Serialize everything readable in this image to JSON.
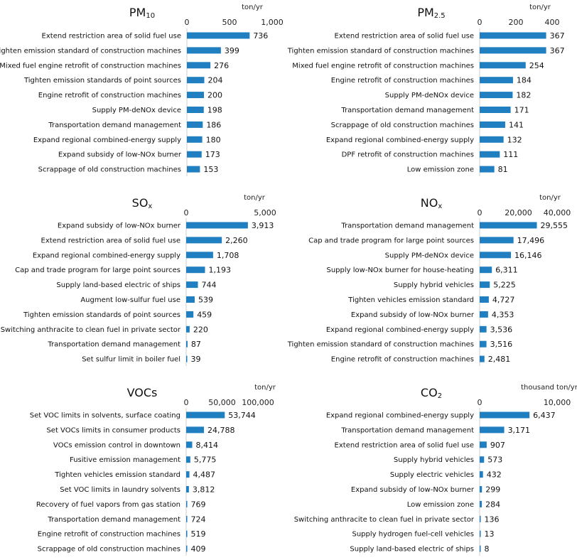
{
  "bar_color": "#1f7fc0",
  "chart_data": [
    {
      "type": "bar",
      "title_main": "PM",
      "title_sub": "10",
      "unit": "ton/yr",
      "xlim": [
        0,
        1000
      ],
      "ticks": [
        0,
        500,
        1000
      ],
      "tick_labels": [
        "0",
        "500",
        "1,000"
      ],
      "categories": [
        "Extend restriction area of solid fuel use",
        "Tighten emission standard of construction machines",
        "Mixed fuel engine retrofit of construction machines",
        "Tighten emission standards of point sources",
        "Engine retrofit of construction machines",
        "Supply PM-deNOx device",
        "Transportation demand management",
        "Expand regional combined-energy supply",
        "Expand subsidy of low-NOx burner",
        "Scrappage of old construction machines"
      ],
      "values": [
        736,
        399,
        276,
        204,
        200,
        198,
        186,
        180,
        173,
        153
      ],
      "value_labels": [
        "736",
        "399",
        "276",
        "204",
        "200",
        "198",
        "186",
        "180",
        "173",
        "153"
      ]
    },
    {
      "type": "bar",
      "title_main": "PM",
      "title_sub": "2.5",
      "unit": "ton/yr",
      "xlim": [
        0,
        400
      ],
      "ticks": [
        0,
        200,
        400
      ],
      "tick_labels": [
        "0",
        "200",
        "400"
      ],
      "categories": [
        "Extend restriction area of solid fuel use",
        "Tighten emission standard of construction machines",
        "Mixed fuel engine retrofit of construction machines",
        "Engine retrofit of construction machines",
        "Supply PM-deNOx device",
        "Transportation demand management",
        "Scrappage of old construction machines",
        "Expand regional combined-energy supply",
        "DPF retrofit of construction machines",
        "Low emission zone"
      ],
      "values": [
        367,
        367,
        254,
        184,
        182,
        171,
        141,
        132,
        111,
        81
      ],
      "value_labels": [
        "367",
        "367",
        "254",
        "184",
        "182",
        "171",
        "141",
        "132",
        "111",
        "81"
      ]
    },
    {
      "type": "bar",
      "title_main": "SO",
      "title_sub": "x",
      "unit": "ton/yr",
      "xlim": [
        0,
        5000
      ],
      "ticks": [
        0,
        5000
      ],
      "tick_labels": [
        "0",
        "5,000"
      ],
      "categories": [
        "Expand subsidy of low-NOx burner",
        "Extend restriction area of solid fuel use",
        "Expand regional combined-energy supply",
        "Cap and trade program for large point sources",
        "Supply land-based electric of ships",
        "Augment low-sulfur fuel use",
        "Tighten emission standards of point sources",
        "Switching anthracite to clean fuel in private sector",
        "Transportation demand management",
        "Set sulfur limit in boiler fuel"
      ],
      "values": [
        3913,
        2260,
        1708,
        1193,
        744,
        539,
        459,
        220,
        87,
        39
      ],
      "value_labels": [
        "3,913",
        "2,260",
        "1,708",
        "1,193",
        "744",
        "539",
        "459",
        "220",
        "87",
        "39"
      ]
    },
    {
      "type": "bar",
      "title_main": "NO",
      "title_sub": "x",
      "unit": "ton/yr",
      "xlim": [
        0,
        40000
      ],
      "ticks": [
        0,
        20000,
        40000
      ],
      "tick_labels": [
        "0",
        "20,000",
        "40,000"
      ],
      "categories": [
        "Transportation demand management",
        "Cap and trade program for large point sources",
        "Supply PM-deNOx device",
        "Supply low-NOx burner for  house-heating",
        "Supply hybrid vehicles",
        "Tighten vehicles emission standard",
        "Expand subsidy of low-NOx burner",
        "Expand regional combined-energy supply",
        "Tighten emission standard of construction machines",
        "Engine retrofit of construction machines"
      ],
      "values": [
        29555,
        17496,
        16146,
        6311,
        5225,
        4727,
        4353,
        3536,
        3516,
        2481
      ],
      "value_labels": [
        "29,555",
        "17,496",
        "16,146",
        "6,311",
        "5,225",
        "4,727",
        "4,353",
        "3,536",
        "3,516",
        "2,481"
      ]
    },
    {
      "type": "bar",
      "title_main": "VOCs",
      "title_sub": "",
      "unit": "ton/yr",
      "xlim": [
        0,
        100000
      ],
      "ticks": [
        0,
        50000,
        100000
      ],
      "tick_labels": [
        "0",
        "50,000",
        "100,000"
      ],
      "categories": [
        "Set VOC limits in solvents, surface coating",
        "Set VOCs limits in consumer products",
        "VOCs emission control in downtown",
        "Fusitive emission management",
        "Tighten vehicles emission standard",
        "Set VOC limits in laundry solvents",
        "Recovery of fuel vapors from gas station",
        "Transportation demand management",
        "Engine retrofit of construction machines",
        "Scrappage of old construction machines"
      ],
      "values": [
        53744,
        24788,
        8414,
        5775,
        4487,
        3812,
        769,
        724,
        519,
        409
      ],
      "value_labels": [
        "53,744",
        "24,788",
        "8,414",
        "5,775",
        "4,487",
        "3,812",
        "769",
        "724",
        "519",
        "409"
      ]
    },
    {
      "type": "bar",
      "title_main": "CO",
      "title_sub": "2",
      "unit": "thousand  ton/yr",
      "xlim": [
        0,
        10000
      ],
      "ticks": [
        0,
        10000
      ],
      "tick_labels": [
        "0",
        "10,000"
      ],
      "categories": [
        "Expand regional combined-energy supply",
        "Transportation demand management",
        "Extend restriction area of solid fuel use",
        "Supply hybrid vehicles",
        "Supply electric vehicles",
        "Expand subsidy of low-NOx burner",
        "Low emission zone",
        "Switching anthracite to clean fuel in private sector",
        "Supply hydrogen fuel-cell vehicles",
        "Supply land-based electric of ships"
      ],
      "values": [
        6437,
        3171,
        907,
        573,
        432,
        299,
        284,
        136,
        13,
        8
      ],
      "value_labels": [
        "6,437",
        "3,171",
        "907",
        "573",
        "432",
        "299",
        "284",
        "136",
        "13",
        "8"
      ]
    }
  ]
}
